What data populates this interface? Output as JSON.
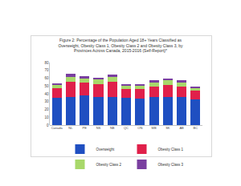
{
  "chart_data": {
    "type": "bar",
    "title": "Figure 2: Percentage of the Population Aged 18+ Years Classified as Overweight, Obesity Class 1, Obesity Class 2 and Obesity Class 3, by Provinces Across Canada, 2015-2016 (Self-Report)*",
    "categories": [
      "Canada",
      "NL",
      "PE",
      "NS",
      "NB",
      "QC",
      "ON",
      "MB",
      "SK",
      "AB",
      "BC"
    ],
    "series": [
      {
        "name": "Overweight",
        "color": "#1f4fc1",
        "values": [
          35,
          36,
          38,
          36,
          36,
          35,
          34,
          36,
          36,
          36,
          33
        ]
      },
      {
        "name": "Obesity Class 1",
        "color": "#e0204a",
        "values": [
          12,
          19,
          16,
          16,
          19,
          11,
          12,
          13,
          15,
          13,
          11
        ]
      },
      {
        "name": "Obesity Class 2",
        "color": "#a8d86a",
        "values": [
          4,
          7,
          6,
          6,
          7,
          4,
          4,
          5,
          6,
          5,
          3
        ]
      },
      {
        "name": "Obesity Class 3",
        "color": "#7a3fa0",
        "values": [
          2,
          4,
          3,
          3,
          3,
          2,
          2,
          3,
          3,
          3,
          2
        ]
      }
    ],
    "ylim": [
      0,
      80
    ],
    "yticks": [
      0,
      10,
      20,
      30,
      40,
      50,
      60,
      70,
      80
    ],
    "stacked": true,
    "grid": false,
    "legend": "bottom"
  }
}
